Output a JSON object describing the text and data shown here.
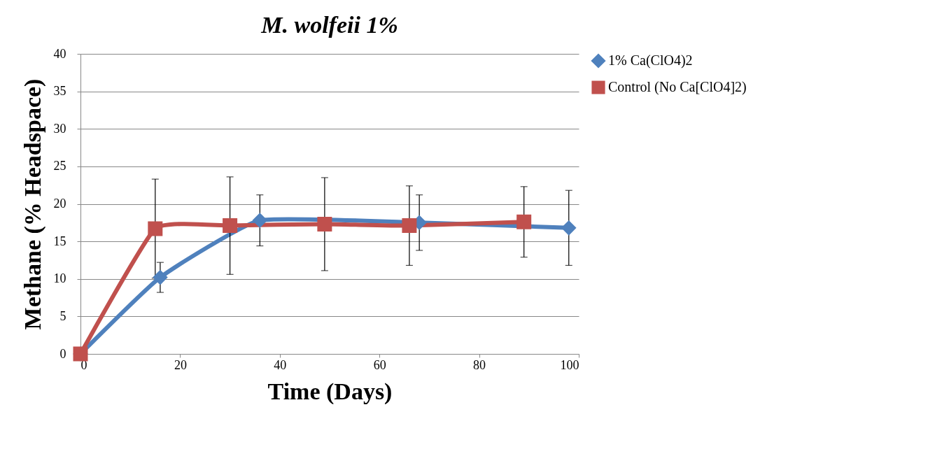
{
  "chart_data": {
    "type": "line",
    "title": "M. wolfeii 1%",
    "xlabel": "Time (Days)",
    "ylabel": "Methane (% Headspace)",
    "xlim": [
      0,
      100
    ],
    "xticks": [
      0,
      20,
      40,
      60,
      80,
      100
    ],
    "ylim": [
      0,
      40
    ],
    "yticks": [
      0,
      5,
      10,
      15,
      20,
      25,
      30,
      35,
      40
    ],
    "grid": "y",
    "legend": "right",
    "series": [
      {
        "name": "1% Ca(ClO4)2",
        "color": "#4f81bd",
        "marker": "diamond",
        "x": [
          0,
          16,
          36,
          68,
          98
        ],
        "values": [
          0,
          10.2,
          17.8,
          17.5,
          16.8
        ],
        "errors": [
          null,
          2.0,
          3.4,
          3.7,
          5.0
        ]
      },
      {
        "name": "Control (No Ca[ClO4]2)",
        "color": "#c0504d",
        "marker": "square",
        "x": [
          0,
          15,
          30,
          49,
          66,
          89
        ],
        "values": [
          0,
          16.7,
          17.1,
          17.3,
          17.1,
          17.6
        ],
        "errors": [
          null,
          6.6,
          6.5,
          6.2,
          5.3,
          4.7
        ]
      }
    ]
  }
}
